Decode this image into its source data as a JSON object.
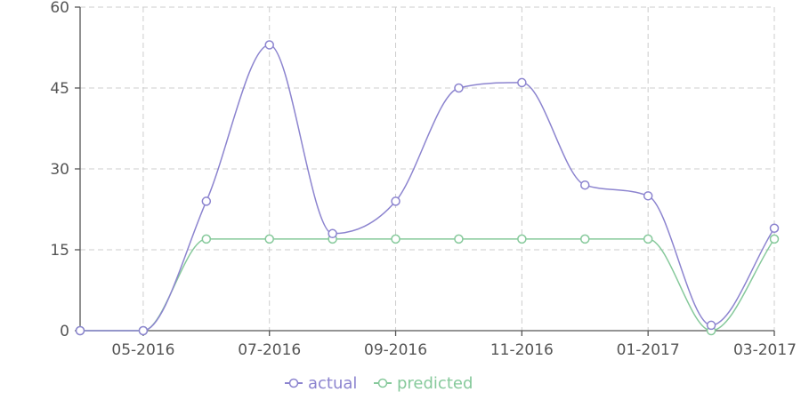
{
  "chart_data": {
    "type": "line",
    "x": [
      "04-2016",
      "05-2016",
      "06-2016",
      "07-2016",
      "08-2016",
      "09-2016",
      "10-2016",
      "11-2016",
      "12-2016",
      "01-2017",
      "02-2017",
      "03-2017"
    ],
    "x_tick_labels": [
      "05-2016",
      "07-2016",
      "09-2016",
      "11-2016",
      "01-2017",
      "03-2017"
    ],
    "y_ticks": [
      0,
      15,
      30,
      45,
      60
    ],
    "ylim": [
      0,
      60
    ],
    "grid": true,
    "legend_position": "bottom-center",
    "series": [
      {
        "name": "actual",
        "color": "#8c84cf",
        "values": [
          0,
          0,
          24,
          53,
          18,
          24,
          45,
          46,
          27,
          25,
          1,
          19
        ]
      },
      {
        "name": "predicted",
        "color": "#86c99b",
        "values": [
          0,
          0,
          17,
          17,
          17,
          17,
          17,
          17,
          17,
          17,
          0,
          17
        ]
      }
    ]
  }
}
